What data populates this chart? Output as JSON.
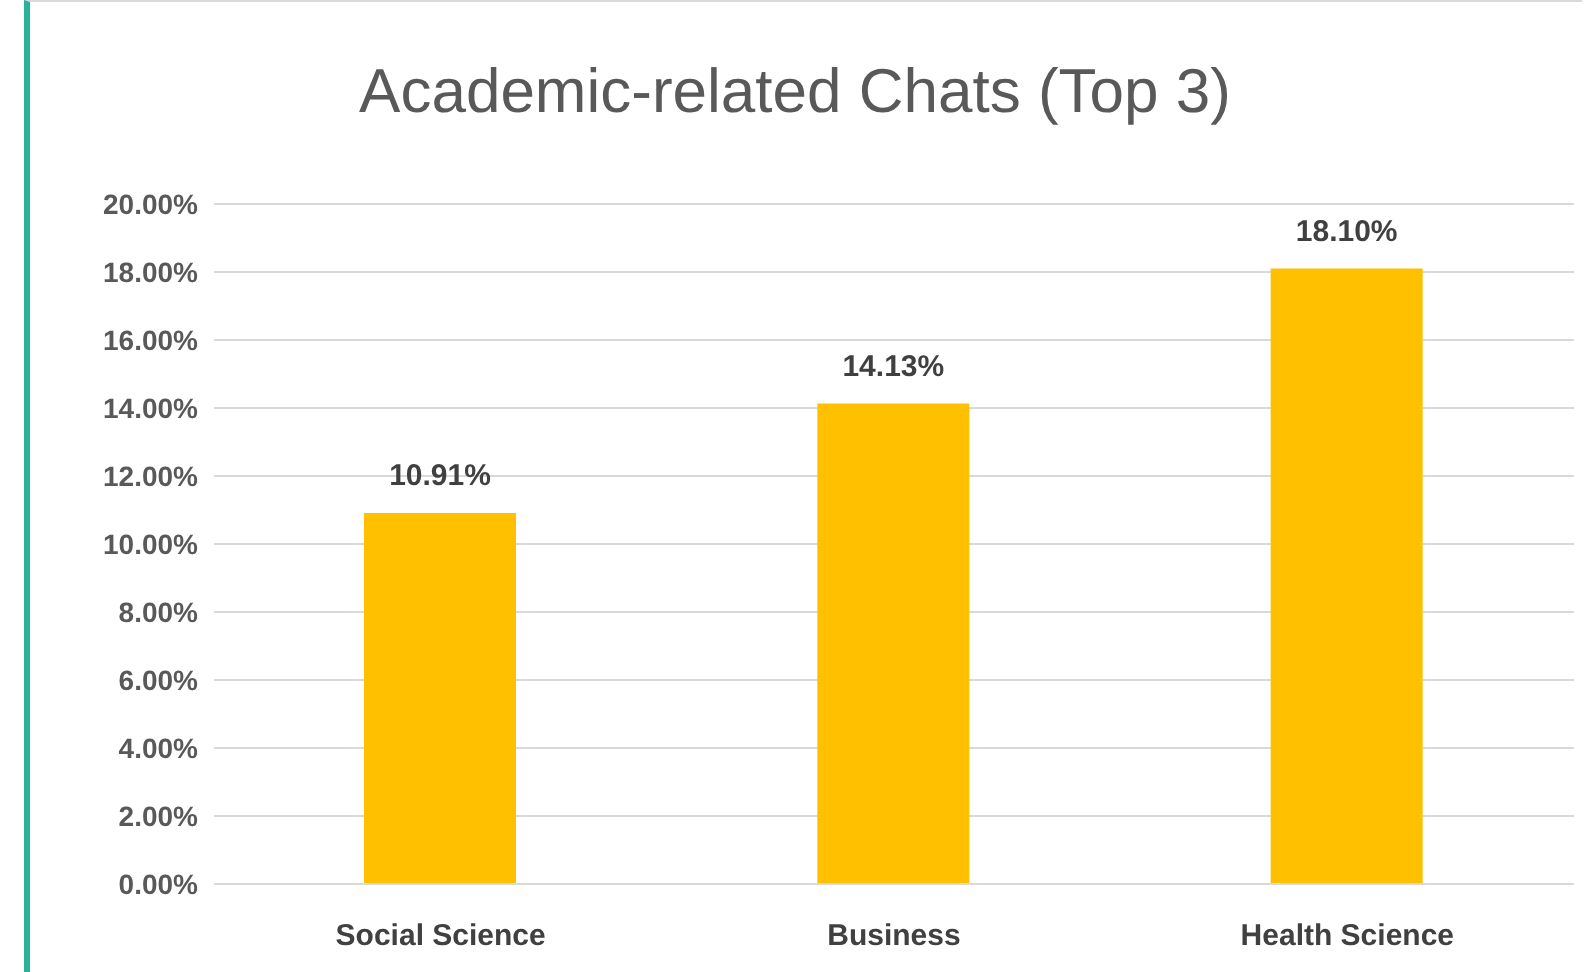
{
  "chart_data": {
    "type": "bar",
    "title": "Academic-related Chats (Top 3)",
    "categories": [
      "Social Science",
      "Business",
      "Health Science"
    ],
    "values": [
      10.91,
      14.13,
      18.1
    ],
    "value_labels": [
      "10.91%",
      "14.13%",
      "18.10%"
    ],
    "color": "#ffc000",
    "ylim": [
      0,
      20
    ],
    "yticks": [
      {
        "value": 0,
        "label": "0.00%"
      },
      {
        "value": 2,
        "label": "2.00%"
      },
      {
        "value": 4,
        "label": "4.00%"
      },
      {
        "value": 6,
        "label": "6.00%"
      },
      {
        "value": 8,
        "label": "8.00%"
      },
      {
        "value": 10,
        "label": "10.00%"
      },
      {
        "value": 12,
        "label": "12.00%"
      },
      {
        "value": 14,
        "label": "14.00%"
      },
      {
        "value": 16,
        "label": "16.00%"
      },
      {
        "value": 18,
        "label": "18.00%"
      },
      {
        "value": 20,
        "label": "20.00%"
      }
    ],
    "grid": "y"
  }
}
